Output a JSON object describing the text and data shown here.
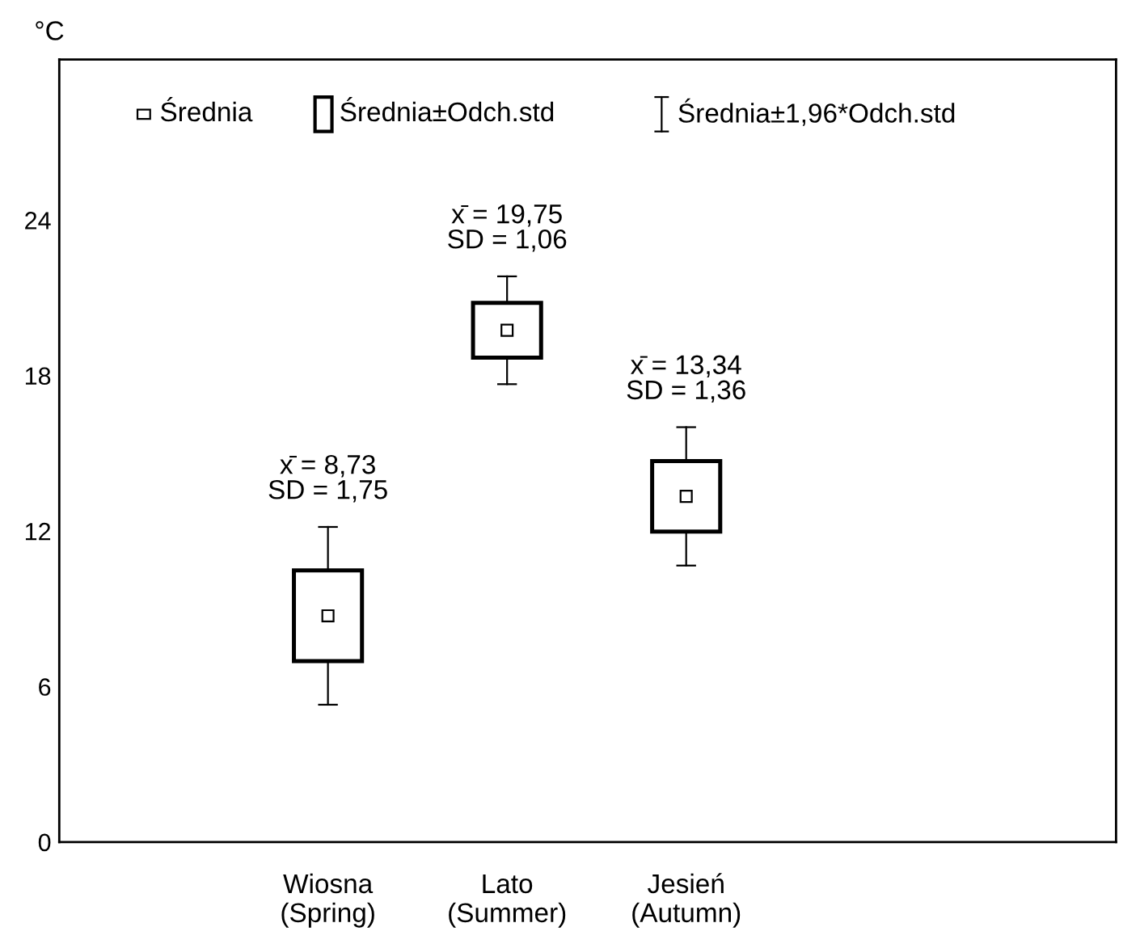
{
  "chart_data": {
    "type": "box",
    "ylabel": "°C",
    "categories": [
      "Wiosna\n(Spring)",
      "Lato\n(Summer)",
      "Jesień\n(Autumn)"
    ],
    "boxes": [
      {
        "low": 5.3,
        "q1": 6.98,
        "median": 8.73,
        "q3": 10.48,
        "high": 12.16
      },
      {
        "low": 17.67,
        "q1": 18.69,
        "median": 19.75,
        "q3": 20.81,
        "high": 21.83
      },
      {
        "low": 10.67,
        "q1": 11.98,
        "median": 13.34,
        "q3": 14.7,
        "high": 16.01
      }
    ],
    "color": "#000000",
    "ylim": [
      0,
      30.2
    ],
    "yticks": [
      0,
      6,
      12,
      18,
      24
    ],
    "annotations": [
      "Średnia",
      "Średnia±Odch.std",
      "Średnia±1,96*Odch.std",
      {
        "text": "x̄ = 8,73\nSD = 1,75",
        "x": "Wiosna\n(Spring)",
        "y": 12.16
      },
      {
        "text": "x̄ = 19,75\nSD = 1,06",
        "x": "Lato\n(Summer)",
        "y": 21.83
      },
      {
        "text": "x̄ = 13,34\nSD = 1,36",
        "x": "Jesień\n(Autumn)",
        "y": 16.01
      }
    ],
    "grid": false
  }
}
